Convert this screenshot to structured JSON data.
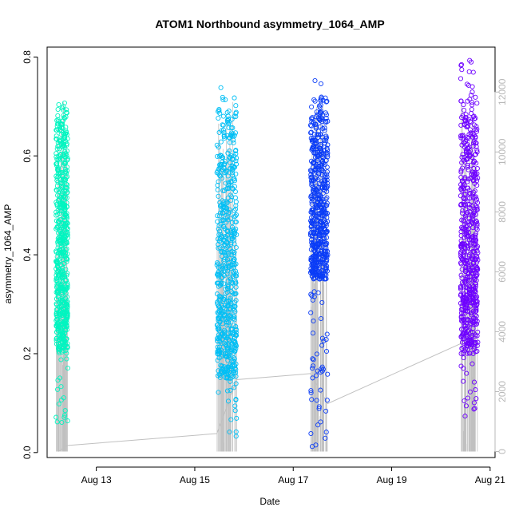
{
  "chart_data": {
    "type": "scatter",
    "title": "ATOM1 Northbound asymmetry_1064_AMP",
    "xlabel": "Date",
    "ylabel": "asymmetry_1064_AMP",
    "x_ticks": [
      "Aug 13",
      "Aug 15",
      "Aug 17",
      "Aug 19",
      "Aug 21"
    ],
    "x_range_days": [
      12.0,
      21.1
    ],
    "ylim": [
      -0.01,
      0.82
    ],
    "y_ticks": [
      0.0,
      0.2,
      0.4,
      0.6,
      0.8
    ],
    "y_tick_labels": [
      "0.0",
      "0.2",
      "0.4",
      "0.6",
      "0.8"
    ],
    "y2lim": [
      -200,
      13500
    ],
    "y2_ticks": [
      0,
      2000,
      4000,
      6000,
      8000,
      10000,
      12000
    ],
    "y2_tick_labels": [
      "0",
      "2000",
      "4000",
      "6000",
      "8000",
      "10000",
      "12000"
    ],
    "grid": false,
    "legend": "none",
    "series": [
      {
        "day_start": 12.18,
        "day_end": 12.42,
        "y_min": 0.06,
        "y_max": 0.72,
        "y_dense_min": 0.2,
        "y_dense_max": 0.71,
        "color": "#00f5c0"
      },
      {
        "day_start": 15.45,
        "day_end": 15.85,
        "y_min": 0.03,
        "y_max": 0.745,
        "y_dense_min": 0.15,
        "y_dense_max": 0.7,
        "color": "#00bff5"
      },
      {
        "day_start": 17.35,
        "day_end": 17.7,
        "y_min": 0.01,
        "y_max": 0.755,
        "y_dense_min": 0.35,
        "y_dense_max": 0.72,
        "color": "#0a3cf7"
      },
      {
        "day_start": 20.4,
        "day_end": 20.75,
        "y_min": 0.07,
        "y_max": 0.795,
        "y_dense_min": 0.2,
        "y_dense_max": 0.72,
        "color": "#6e00ff"
      }
    ],
    "count_line": {
      "color": "#c0c0c0",
      "points": [
        [
          12.23,
          0
        ],
        [
          12.4,
          200
        ],
        [
          15.45,
          600
        ],
        [
          15.85,
          2400
        ],
        [
          17.35,
          2600
        ],
        [
          17.7,
          1600
        ],
        [
          20.4,
          3600
        ],
        [
          20.75,
          4000
        ]
      ]
    }
  }
}
